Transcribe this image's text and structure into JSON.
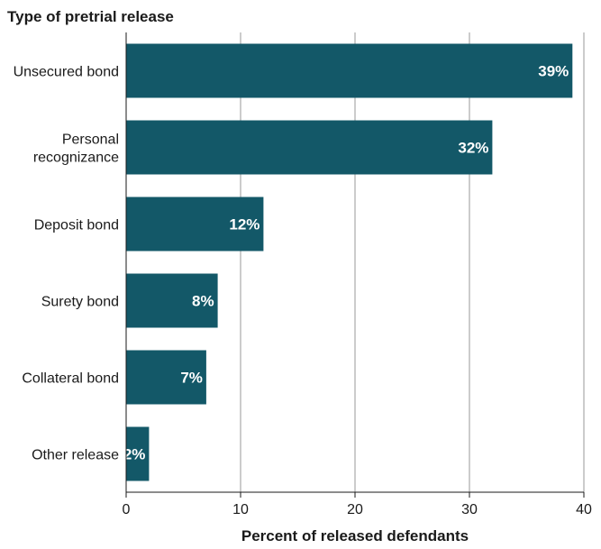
{
  "chart_data": {
    "type": "bar",
    "orientation": "horizontal",
    "title": "Type of pretrial release",
    "xlabel": "Percent of released defendants",
    "categories": [
      "Unsecured bond",
      "Personal recognizance",
      "Deposit bond",
      "Surety bond",
      "Collateral bond",
      "Other release"
    ],
    "category_lines": [
      [
        "Unsecured bond"
      ],
      [
        "Personal",
        "recognizance"
      ],
      [
        "Deposit bond"
      ],
      [
        "Surety bond"
      ],
      [
        "Collateral bond"
      ],
      [
        "Other release"
      ]
    ],
    "values": [
      39,
      32,
      12,
      8,
      7,
      2
    ],
    "value_labels": [
      "39%",
      "32%",
      "12%",
      "8%",
      "7%",
      "2%"
    ],
    "xlim": [
      0,
      40
    ],
    "xticks": [
      0,
      10,
      20,
      30,
      40
    ],
    "grid": true,
    "colors": {
      "bar": "#135868",
      "grid": "#999999"
    }
  }
}
